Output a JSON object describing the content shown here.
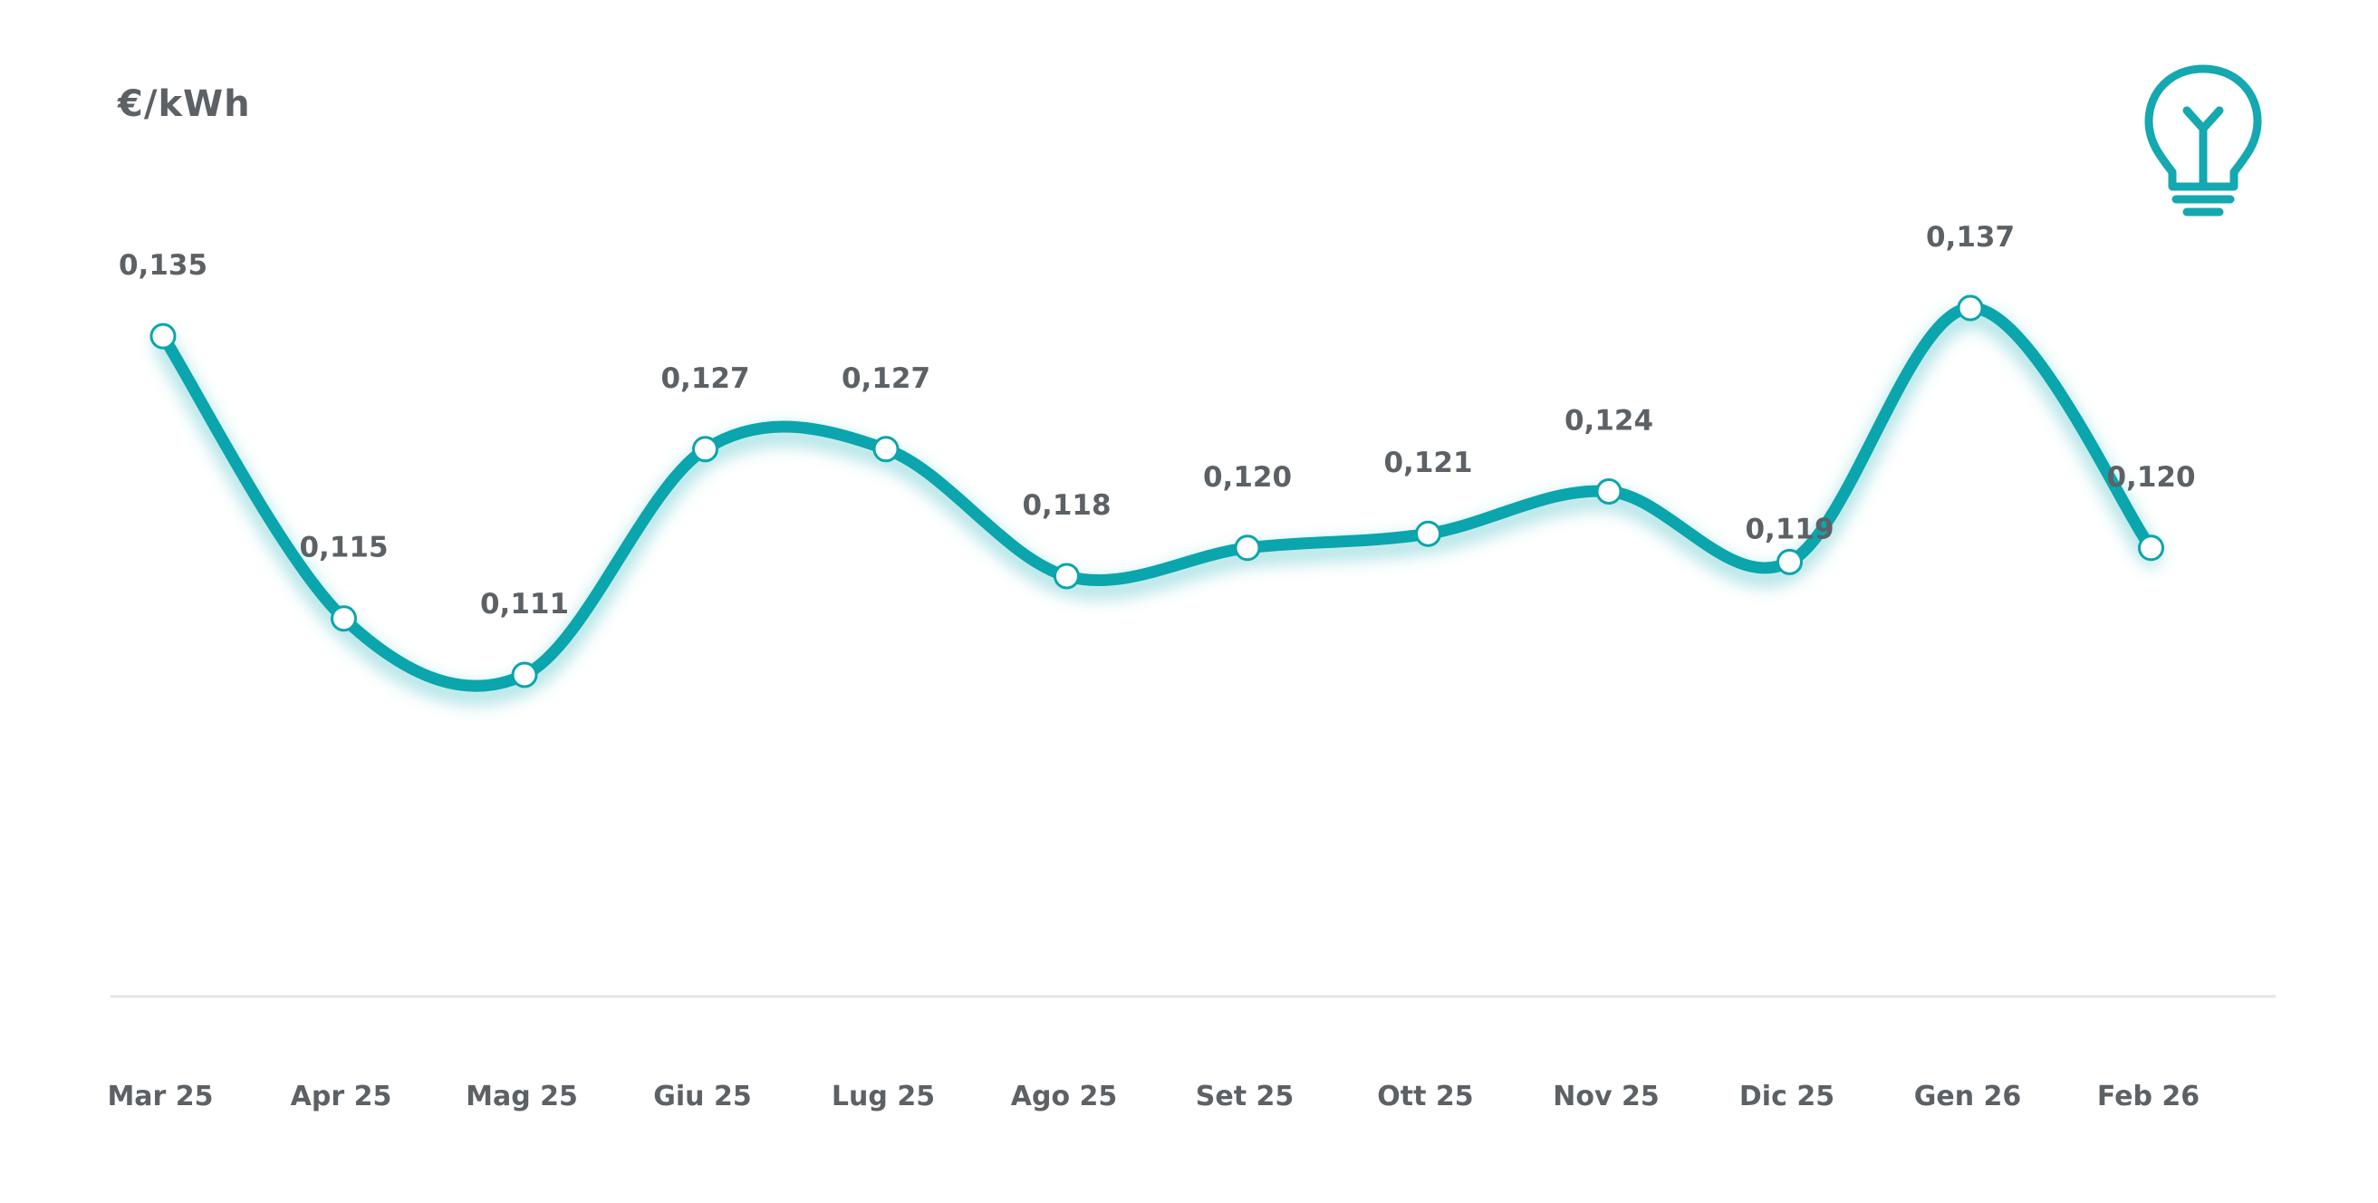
{
  "chart_data": {
    "type": "line",
    "ylabel": "€/kWh",
    "categories": [
      "Mar 25",
      "Apr 25",
      "Mag 25",
      "Giu 25",
      "Lug 25",
      "Ago 25",
      "Set 25",
      "Ott 25",
      "Nov 25",
      "Dic 25",
      "Gen 26",
      "Feb 26"
    ],
    "series": [
      {
        "name": "€/kWh",
        "values": [
          0.135,
          0.115,
          0.111,
          0.127,
          0.127,
          0.118,
          0.12,
          0.121,
          0.124,
          0.119,
          0.137,
          0.12
        ],
        "labels": [
          "0,135",
          "0,115",
          "0,111",
          "0,127",
          "0,127",
          "0,118",
          "0,120",
          "0,121",
          "0,124",
          "0,119",
          "0,137",
          "0,120"
        ]
      }
    ],
    "grid": false,
    "legend": "none"
  },
  "colors": {
    "line": "#0aa5ad",
    "glow": "#8fd8dc",
    "text": "#5c6166",
    "axis": "#e3e5e7",
    "icon": "#14a8b0"
  },
  "icon": "lightbulb-icon"
}
